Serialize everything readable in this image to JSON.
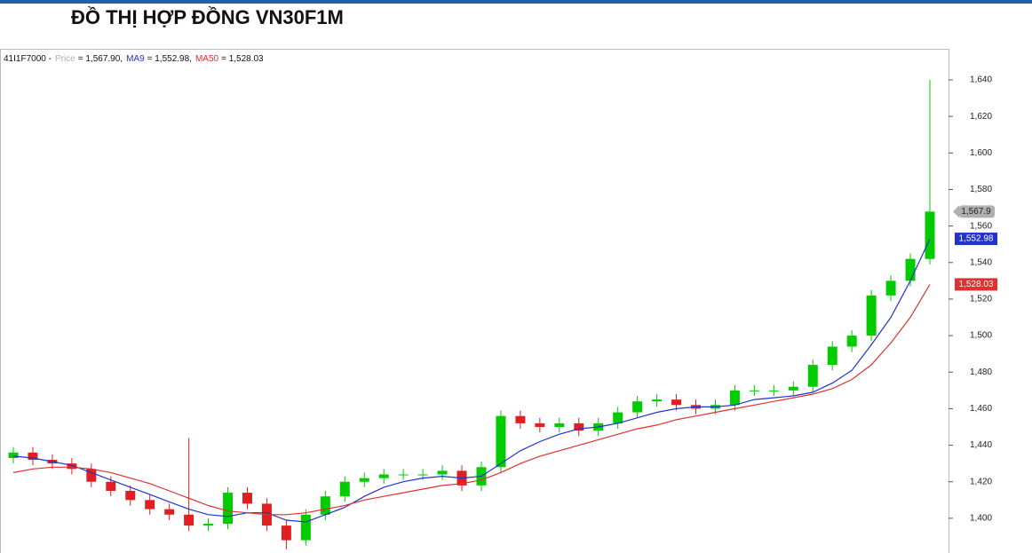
{
  "chart_data": {
    "type": "candlestick",
    "title": "ĐỒ THỊ HỢP ĐỒNG VN30F1M",
    "legend_prefix": "41I1F7000 -",
    "categories": [
      null,
      null,
      null,
      null,
      null,
      null,
      null,
      null,
      null,
      null,
      null,
      null,
      null,
      null,
      null,
      null,
      null,
      null,
      null,
      null,
      null,
      null,
      null,
      null,
      null,
      null,
      null,
      null,
      null,
      null,
      null,
      null,
      null,
      null,
      null,
      null,
      null,
      null,
      null,
      null,
      null,
      null,
      null,
      null,
      null,
      null,
      null,
      null
    ],
    "ylim": [
      1381,
      1657
    ],
    "yticks": [
      {
        "value": 1400,
        "label": "1,400"
      },
      {
        "value": 1420,
        "label": "1,420"
      },
      {
        "value": 1440,
        "label": "1,440"
      },
      {
        "value": 1460,
        "label": "1,460"
      },
      {
        "value": 1480,
        "label": "1,480"
      },
      {
        "value": 1500,
        "label": "1,500"
      },
      {
        "value": 1520,
        "label": "1,520"
      },
      {
        "value": 1540,
        "label": "1,540"
      },
      {
        "value": 1560,
        "label": "1,560"
      },
      {
        "value": 1580,
        "label": "1,580"
      },
      {
        "value": 1600,
        "label": "1,600"
      },
      {
        "value": 1620,
        "label": "1,620"
      },
      {
        "value": 1640,
        "label": "1,640"
      }
    ],
    "series": [
      {
        "name": "Price",
        "color": "#b0b0b0",
        "up_color": "#00cc00",
        "down_color": "#e02020",
        "legend_text": "= 1,567.90,",
        "last_label": "1,567.9",
        "open": [
          1433,
          1436,
          1432,
          1430,
          1427,
          1420,
          1415,
          1410,
          1405,
          1402,
          1396,
          1397,
          1414,
          1408,
          1396,
          1388,
          1402,
          1412,
          1420,
          1422,
          1424,
          1424,
          1424,
          1426,
          1418,
          1428,
          1456,
          1452,
          1450,
          1452,
          1448,
          1452,
          1458,
          1464,
          1465,
          1462,
          1460,
          1462,
          1470,
          1470,
          1470,
          1472,
          1484,
          1494,
          1500,
          1522,
          1530,
          1542
        ],
        "high": [
          1439,
          1439,
          1435,
          1433,
          1430,
          1423,
          1418,
          1413,
          1408,
          1444,
          1400,
          1417,
          1417,
          1411,
          1399,
          1405,
          1415,
          1423,
          1425,
          1427,
          1427,
          1427,
          1429,
          1429,
          1431,
          1459,
          1459,
          1455,
          1455,
          1455,
          1455,
          1461,
          1467,
          1468,
          1468,
          1465,
          1465,
          1473,
          1473,
          1473,
          1475,
          1487,
          1497,
          1503,
          1525,
          1533,
          1545,
          1640
        ],
        "low": [
          1430,
          1429,
          1427,
          1424,
          1417,
          1412,
          1407,
          1402,
          1399,
          1393,
          1393,
          1394,
          1405,
          1393,
          1383,
          1385,
          1399,
          1409,
          1417,
          1419,
          1421,
          1421,
          1421,
          1415,
          1415,
          1425,
          1449,
          1447,
          1447,
          1445,
          1445,
          1449,
          1455,
          1461,
          1459,
          1457,
          1457,
          1459,
          1467,
          1467,
          1467,
          1469,
          1481,
          1491,
          1497,
          1519,
          1527,
          1539
        ],
        "close": [
          1436,
          1432,
          1430,
          1427,
          1420,
          1415,
          1410,
          1405,
          1402,
          1396,
          1397,
          1414,
          1408,
          1396,
          1388,
          1402,
          1412,
          1420,
          1422,
          1424,
          1424,
          1424,
          1426,
          1418,
          1428,
          1456,
          1452,
          1450,
          1452,
          1448,
          1452,
          1458,
          1464,
          1465,
          1462,
          1460,
          1462,
          1470,
          1470,
          1470,
          1472,
          1484,
          1494,
          1500,
          1522,
          1530,
          1542,
          1567.9
        ]
      },
      {
        "name": "MA9",
        "color": "#2233cc",
        "legend_text": "= 1,552.98,",
        "last_label": "1,552.98",
        "values": [
          1434,
          1433,
          1431,
          1429,
          1425,
          1421,
          1417,
          1413,
          1409,
          1405,
          1402,
          1401,
          1403,
          1403,
          1399,
          1398,
          1402,
          1406,
          1412,
          1417,
          1420,
          1422,
          1423,
          1422,
          1423,
          1430,
          1437,
          1442,
          1446,
          1449,
          1450,
          1452,
          1455,
          1458,
          1460,
          1461,
          1461,
          1462,
          1465,
          1466,
          1467,
          1469,
          1474,
          1481,
          1495,
          1510,
          1530,
          1552.98
        ]
      },
      {
        "name": "MA50",
        "color": "#e03030",
        "legend_text": "= 1,528.03",
        "last_label": "1,528.03",
        "values": [
          1425,
          1427,
          1428,
          1428,
          1427,
          1425,
          1422,
          1419,
          1415,
          1411,
          1407,
          1404,
          1403,
          1402,
          1402,
          1403,
          1405,
          1407,
          1410,
          1412,
          1414,
          1416,
          1418,
          1419,
          1421,
          1425,
          1430,
          1434,
          1437,
          1440,
          1443,
          1446,
          1449,
          1451,
          1454,
          1456,
          1458,
          1460,
          1462,
          1464,
          1466,
          1468,
          1471,
          1476,
          1484,
          1496,
          1510,
          1528.03
        ]
      }
    ]
  }
}
